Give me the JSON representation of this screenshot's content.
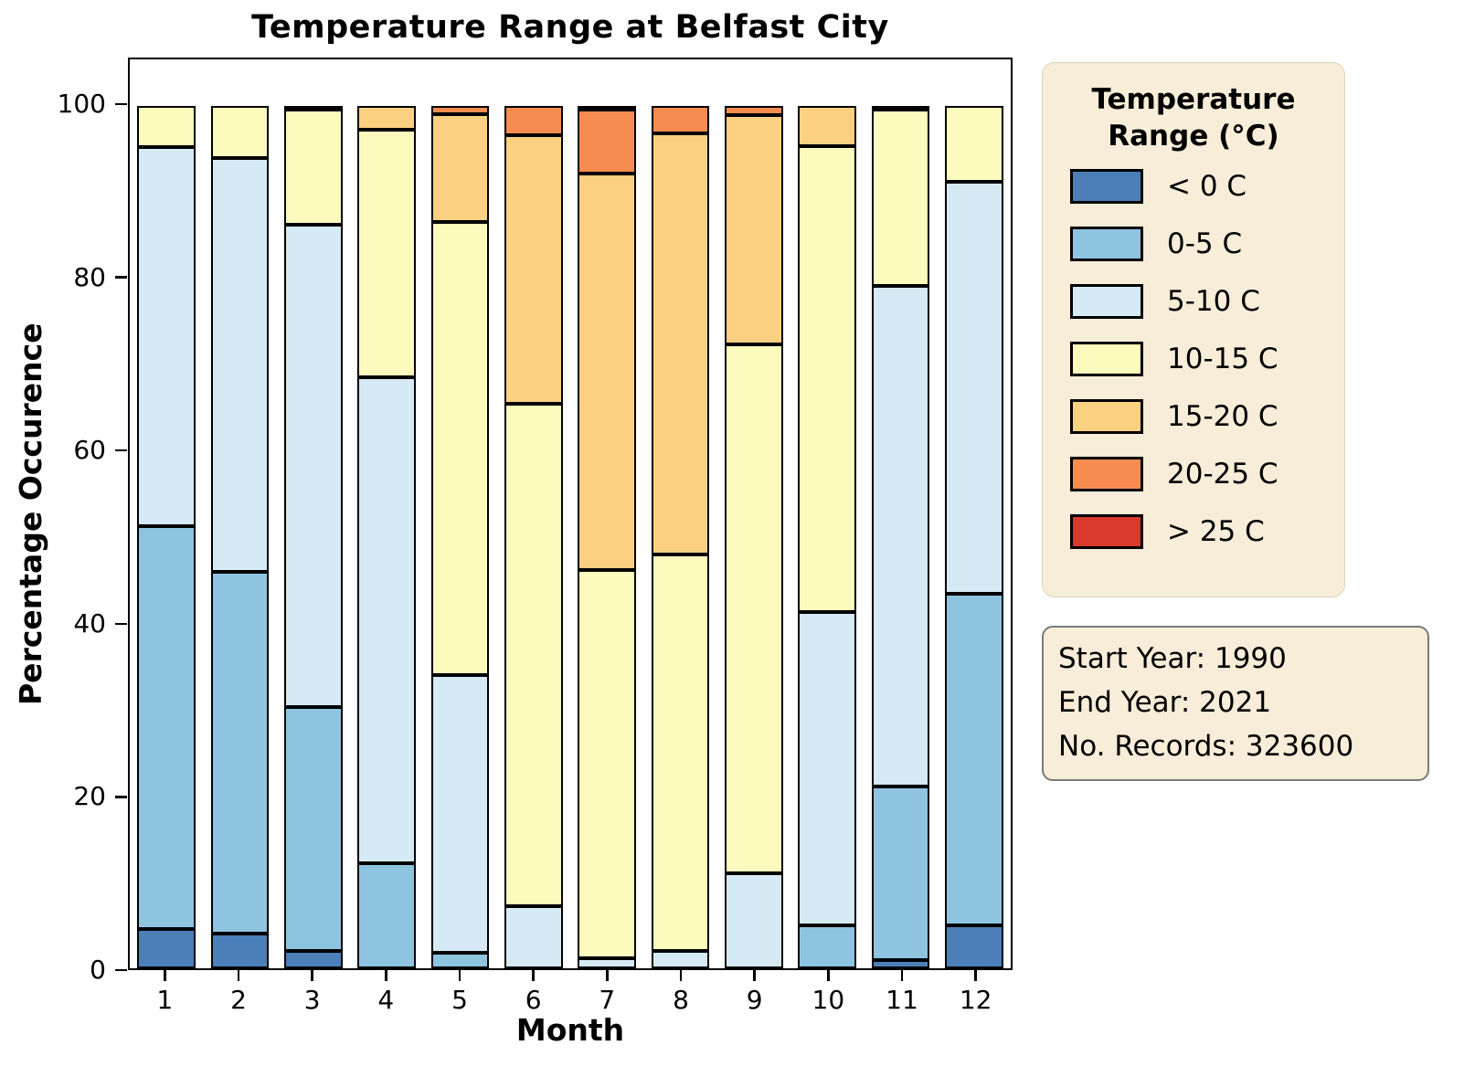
{
  "title": "Temperature Range at Belfast City",
  "axes": {
    "x_label": "Month",
    "y_label": "Percentage Occurence",
    "y_ticks": [
      0,
      20,
      40,
      60,
      80,
      100
    ],
    "x_ticks": [
      "1",
      "2",
      "3",
      "4",
      "5",
      "6",
      "7",
      "8",
      "9",
      "10",
      "11",
      "12"
    ]
  },
  "legend": {
    "title_line1": "Temperature",
    "title_line2": "Range (°C)",
    "items": [
      {
        "label": "< 0 C",
        "color": "#4c7fb8"
      },
      {
        "label": "0-5 C",
        "color": "#8fc4e1"
      },
      {
        "label": "5-10 C",
        "color": "#d5eaf4"
      },
      {
        "label": "10-15 C",
        "color": "#fdfabd"
      },
      {
        "label": "15-20 C",
        "color": "#fbd181"
      },
      {
        "label": "20-25 C",
        "color": "#f78c51"
      },
      {
        "label": "> 25 C",
        "color": "#d93a2b"
      }
    ]
  },
  "info_box": {
    "lines": [
      "Start Year: 1990",
      "End Year: 2021",
      "No. Records: 323600"
    ]
  },
  "chart_data": {
    "type": "bar",
    "stacked": true,
    "title": "Temperature Range at Belfast City",
    "xlabel": "Month",
    "ylabel": "Percentage Occurence",
    "ylim": [
      0,
      105.7
    ],
    "grid": false,
    "legend_position": "right",
    "categories": [
      1,
      2,
      3,
      4,
      5,
      6,
      7,
      8,
      9,
      10,
      11,
      12
    ],
    "series": [
      {
        "name": "< 0 C",
        "color": "#4c7fb8",
        "values": [
          4.6,
          4.0,
          2.0,
          0,
          0,
          0,
          0,
          0,
          0,
          0,
          1.0,
          5.0
        ]
      },
      {
        "name": "0-5 C",
        "color": "#8fc4e1",
        "values": [
          46.7,
          42.0,
          28.3,
          12.2,
          1.8,
          0,
          0,
          0,
          0,
          5.0,
          20.1,
          38.4
        ]
      },
      {
        "name": "5-10 C",
        "color": "#d5eaf4",
        "values": [
          43.9,
          48.0,
          56.0,
          56.3,
          32.2,
          7.2,
          1.2,
          2.0,
          11.0,
          36.3,
          58.0,
          47.8
        ]
      },
      {
        "name": "10-15 C",
        "color": "#fdfabd",
        "values": [
          4.8,
          6.0,
          13.4,
          28.8,
          52.5,
          58.3,
          45.1,
          46.0,
          61.4,
          54.0,
          20.5,
          8.8
        ]
      },
      {
        "name": "15-20 C",
        "color": "#fbd181",
        "values": [
          0,
          0,
          0.3,
          2.7,
          12.5,
          31.1,
          46.1,
          48.8,
          26.5,
          4.7,
          0.4,
          0
        ]
      },
      {
        "name": "20-25 C",
        "color": "#f78c51",
        "values": [
          0,
          0,
          0,
          0,
          1.0,
          3.4,
          7.4,
          3.2,
          1.1,
          0,
          0,
          0
        ]
      },
      {
        "name": "> 25 C",
        "color": "#d93a2b",
        "values": [
          0,
          0,
          0,
          0,
          0,
          0,
          0.2,
          0,
          0,
          0,
          0,
          0
        ]
      }
    ]
  }
}
